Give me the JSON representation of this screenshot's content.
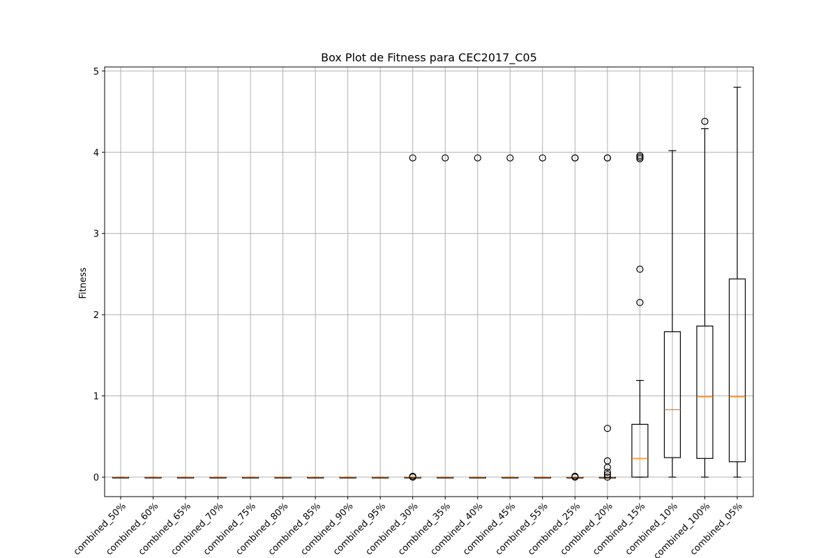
{
  "chart_data": {
    "type": "box",
    "title": "Box Plot de Fitness para CEC2017_C05",
    "xlabel": "",
    "ylabel": "Fitness",
    "ylim": [
      -0.24,
      5.05
    ],
    "yticks": [
      0,
      1,
      2,
      3,
      4,
      5
    ],
    "grid": true,
    "categories": [
      "combined_50%",
      "combined_60%",
      "combined_65%",
      "combined_70%",
      "combined_75%",
      "combined_80%",
      "combined_85%",
      "combined_90%",
      "combined_95%",
      "combined_30%",
      "combined_35%",
      "combined_40%",
      "combined_45%",
      "combined_55%",
      "combined_25%",
      "combined_20%",
      "combined_15%",
      "combined_10%",
      "combined_100%",
      "combined_05%"
    ],
    "boxes": [
      {
        "whisker_low": 0,
        "q1": 0,
        "median": 0,
        "q3": 0,
        "whisker_high": 0,
        "outliers": []
      },
      {
        "whisker_low": 0,
        "q1": 0,
        "median": 0,
        "q3": 0,
        "whisker_high": 0,
        "outliers": []
      },
      {
        "whisker_low": 0,
        "q1": 0,
        "median": 0,
        "q3": 0,
        "whisker_high": 0,
        "outliers": []
      },
      {
        "whisker_low": 0,
        "q1": 0,
        "median": 0,
        "q3": 0,
        "whisker_high": 0,
        "outliers": []
      },
      {
        "whisker_low": 0,
        "q1": 0,
        "median": 0,
        "q3": 0,
        "whisker_high": 0,
        "outliers": []
      },
      {
        "whisker_low": 0,
        "q1": 0,
        "median": 0,
        "q3": 0,
        "whisker_high": 0,
        "outliers": []
      },
      {
        "whisker_low": 0,
        "q1": 0,
        "median": 0,
        "q3": 0,
        "whisker_high": 0,
        "outliers": []
      },
      {
        "whisker_low": 0,
        "q1": 0,
        "median": 0,
        "q3": 0,
        "whisker_high": 0,
        "outliers": []
      },
      {
        "whisker_low": 0,
        "q1": 0,
        "median": 0,
        "q3": 0,
        "whisker_high": 0,
        "outliers": []
      },
      {
        "whisker_low": 0,
        "q1": 0,
        "median": 0,
        "q3": 0,
        "whisker_high": 0,
        "outliers": [
          3.93,
          0.01,
          0.0
        ]
      },
      {
        "whisker_low": 0,
        "q1": 0,
        "median": 0,
        "q3": 0,
        "whisker_high": 0,
        "outliers": [
          3.93
        ]
      },
      {
        "whisker_low": 0,
        "q1": 0,
        "median": 0,
        "q3": 0,
        "whisker_high": 0,
        "outliers": [
          3.93
        ]
      },
      {
        "whisker_low": 0,
        "q1": 0,
        "median": 0,
        "q3": 0,
        "whisker_high": 0,
        "outliers": [
          3.93
        ]
      },
      {
        "whisker_low": 0,
        "q1": 0,
        "median": 0,
        "q3": 0,
        "whisker_high": 0,
        "outliers": [
          3.93
        ]
      },
      {
        "whisker_low": 0,
        "q1": 0,
        "median": 0,
        "q3": 0,
        "whisker_high": 0,
        "outliers": [
          3.93,
          3.93,
          0.01,
          0.0
        ]
      },
      {
        "whisker_low": 0,
        "q1": 0,
        "median": 0,
        "q3": 0,
        "whisker_high": 0,
        "outliers": [
          3.93,
          3.93,
          0.6,
          0.2,
          0.12,
          0.06,
          0.03,
          0.0
        ]
      },
      {
        "whisker_low": 0,
        "q1": 0,
        "median": 0.23,
        "q3": 0.65,
        "whisker_high": 1.19,
        "outliers": [
          3.96,
          3.94,
          3.92,
          2.56,
          2.15
        ]
      },
      {
        "whisker_low": 0,
        "q1": 0.24,
        "median": 0.83,
        "q3": 1.79,
        "whisker_high": 4.02,
        "outliers": []
      },
      {
        "whisker_low": 0,
        "q1": 0.23,
        "median": 0.99,
        "q3": 1.86,
        "whisker_high": 4.29,
        "outliers": [
          4.38
        ]
      },
      {
        "whisker_low": 0,
        "q1": 0.19,
        "median": 0.99,
        "q3": 2.44,
        "whisker_high": 4.8,
        "outliers": []
      }
    ],
    "colors": {
      "box": "#000000",
      "median": "#ff7f0e",
      "grid": "#b0b0b0",
      "outlier": "#000000"
    }
  }
}
